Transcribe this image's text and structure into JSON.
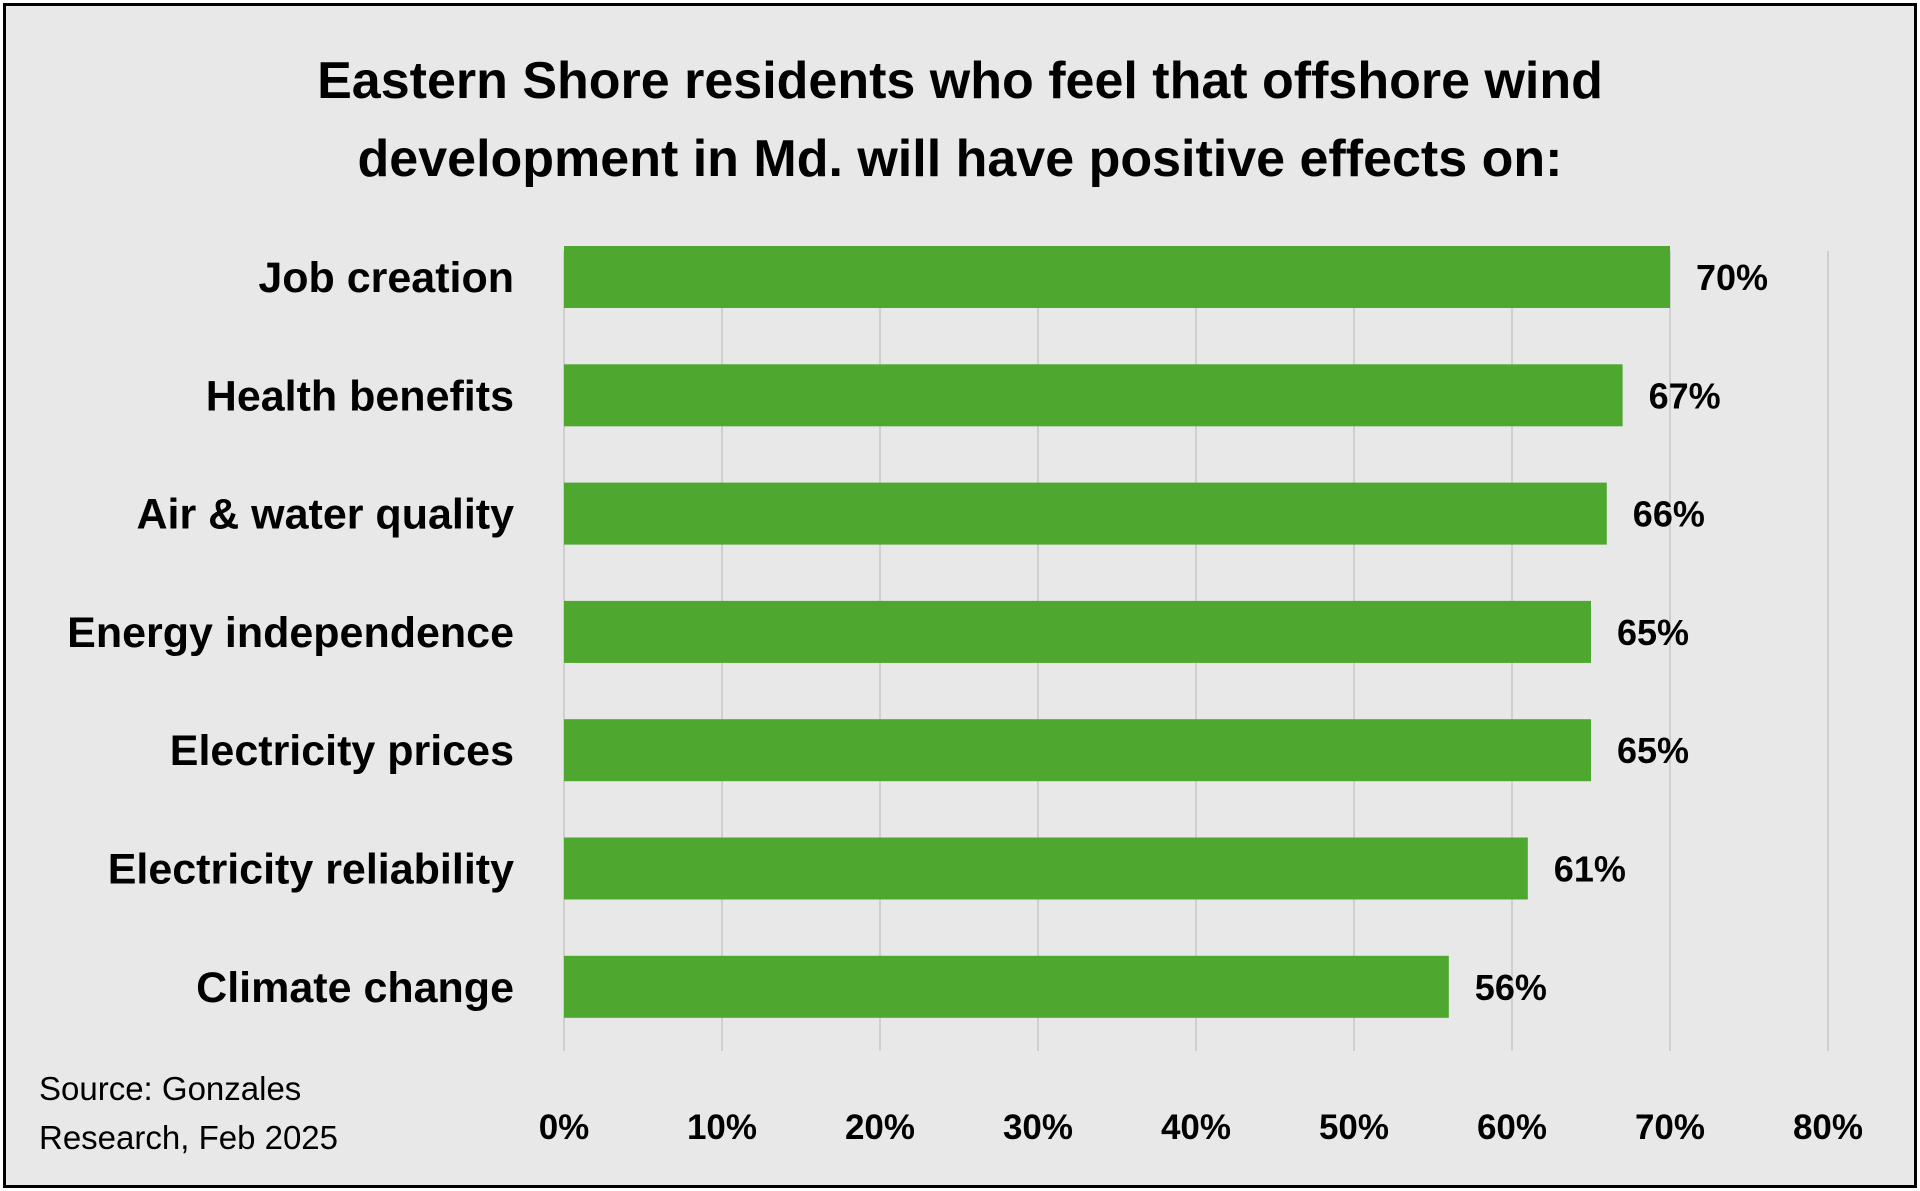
{
  "chart_data": {
    "type": "bar",
    "orientation": "horizontal",
    "title": [
      "Eastern Shore residents who feel that offshore wind",
      "development in Md. will have positive effects on:"
    ],
    "categories": [
      "Job creation",
      "Health benefits",
      "Air & water quality",
      "Energy independence",
      "Electricity prices",
      "Electricity reliability",
      "Climate change"
    ],
    "values": [
      70,
      67,
      66,
      65,
      65,
      61,
      56
    ],
    "value_labels": [
      "70%",
      "67%",
      "66%",
      "65%",
      "65%",
      "61%",
      "56%"
    ],
    "xlim": [
      0,
      80
    ],
    "x_ticks": [
      "0%",
      "10%",
      "20%",
      "30%",
      "40%",
      "50%",
      "60%",
      "70%",
      "80%"
    ],
    "grid": true,
    "legend": "none",
    "bar_color": "#4ea72e",
    "source": [
      "Source: Gonzales",
      "Research, Feb 2025"
    ]
  }
}
